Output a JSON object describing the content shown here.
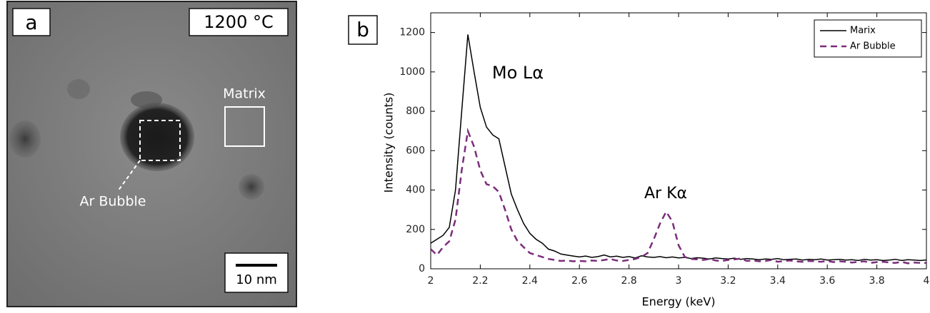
{
  "panel_a": {
    "label": "a",
    "temperature": "1200 °C",
    "matrix_label": "Matrix",
    "bubble_label": "Ar Bubble",
    "scale_label": "10 nm"
  },
  "chart_data": {
    "type": "line",
    "panel_label": "b",
    "xlabel": "Energy (keV)",
    "ylabel": "Intensity (counts)",
    "annotations": [
      "Mo Lα",
      "Ar Kα"
    ],
    "x": [
      2,
      2.025,
      2.05,
      2.075,
      2.1,
      2.125,
      2.15,
      2.175,
      2.2,
      2.225,
      2.25,
      2.275,
      2.3,
      2.325,
      2.35,
      2.375,
      2.4,
      2.425,
      2.45,
      2.475,
      2.5,
      2.525,
      2.55,
      2.575,
      2.6,
      2.625,
      2.65,
      2.675,
      2.7,
      2.725,
      2.75,
      2.775,
      2.8,
      2.825,
      2.85,
      2.875,
      2.9,
      2.925,
      2.95,
      2.975,
      3,
      3.025,
      3.05,
      3.075,
      3.1,
      3.125,
      3.15,
      3.175,
      3.2,
      3.225,
      3.25,
      3.275,
      3.3,
      3.325,
      3.35,
      3.375,
      3.4,
      3.425,
      3.45,
      3.475,
      3.5,
      3.525,
      3.55,
      3.575,
      3.6,
      3.625,
      3.65,
      3.675,
      3.7,
      3.725,
      3.75,
      3.775,
      3.8,
      3.825,
      3.85,
      3.875,
      3.9,
      3.925,
      3.95,
      3.975,
      4
    ],
    "series": [
      {
        "name": "Marix",
        "color": "#000000",
        "dashed": false,
        "values": [
          130,
          150,
          170,
          210,
          400,
          800,
          1190,
          1000,
          820,
          720,
          680,
          660,
          520,
          380,
          300,
          230,
          180,
          150,
          130,
          100,
          90,
          75,
          70,
          65,
          60,
          65,
          58,
          62,
          70,
          60,
          64,
          58,
          62,
          55,
          66,
          60,
          58,
          62,
          56,
          60,
          55,
          58,
          52,
          56,
          54,
          50,
          55,
          52,
          50,
          54,
          48,
          52,
          50,
          46,
          50,
          48,
          52,
          46,
          48,
          50,
          44,
          48,
          46,
          50,
          44,
          46,
          48,
          44,
          46,
          42,
          48,
          44,
          46,
          42,
          44,
          48,
          42,
          46,
          44,
          42,
          45
        ]
      },
      {
        "name": "Ar Bubble",
        "color": "#7b2d7b",
        "dashed": true,
        "values": [
          100,
          70,
          110,
          140,
          250,
          500,
          700,
          620,
          500,
          430,
          420,
          390,
          300,
          200,
          140,
          110,
          80,
          70,
          60,
          50,
          45,
          40,
          42,
          38,
          40,
          38,
          42,
          40,
          45,
          50,
          42,
          40,
          45,
          50,
          60,
          80,
          150,
          230,
          290,
          240,
          120,
          60,
          50,
          48,
          45,
          50,
          42,
          40,
          45,
          48,
          52,
          40,
          42,
          38,
          40,
          45,
          36,
          40,
          42,
          38,
          35,
          40,
          38,
          36,
          40,
          34,
          38,
          36,
          32,
          35,
          38,
          30,
          34,
          36,
          32,
          30,
          35,
          28,
          32,
          30,
          30
        ]
      }
    ],
    "xlim": [
      2,
      4
    ],
    "ylim": [
      0,
      1300
    ],
    "xticks": [
      2,
      2.2,
      2.4,
      2.6,
      2.8,
      3,
      3.2,
      3.4,
      3.6,
      3.8,
      4
    ],
    "yticks": [
      0,
      200,
      400,
      600,
      800,
      1000,
      1200
    ],
    "legend": "upper right"
  }
}
